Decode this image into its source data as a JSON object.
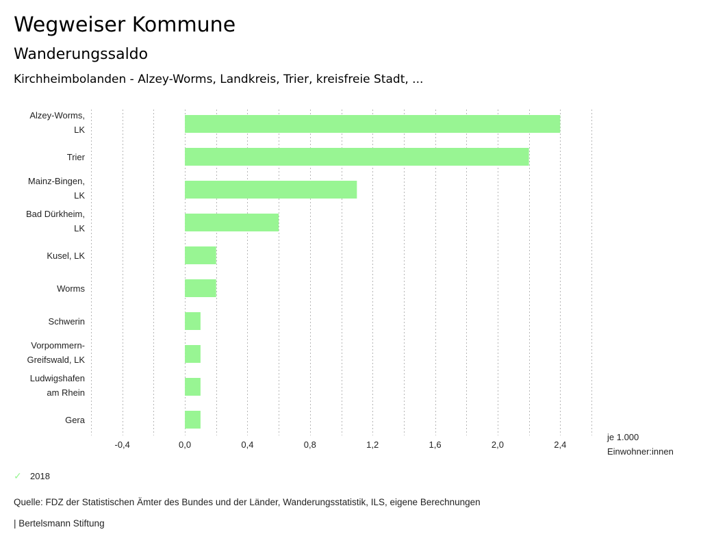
{
  "header": {
    "title": "Wegweiser Kommune",
    "subtitle": "Wanderungssaldo",
    "selection": "Kirchheimbolanden - Alzey-Worms, Landkreis, Trier, kreisfreie Stadt, ..."
  },
  "chart_data": {
    "type": "bar",
    "orientation": "horizontal",
    "title": "Wanderungssaldo",
    "categories": [
      [
        "Alzey-Worms,",
        "LK"
      ],
      [
        "Trier"
      ],
      [
        "Mainz-Bingen,",
        "LK"
      ],
      [
        "Bad Dürkheim,",
        "LK"
      ],
      [
        "Kusel, LK"
      ],
      [
        "Worms"
      ],
      [
        "Schwerin"
      ],
      [
        "Vorpommern-",
        "Greifswald, LK"
      ],
      [
        "Ludwigshafen",
        "am Rhein"
      ],
      [
        "Gera"
      ]
    ],
    "series": [
      {
        "name": "2018",
        "color": "#98f593",
        "values": [
          2.4,
          2.2,
          1.1,
          0.6,
          0.2,
          0.2,
          0.1,
          0.1,
          0.1,
          0.1
        ]
      }
    ],
    "xlim": [
      -0.6,
      2.6
    ],
    "gridlines_at": [
      -0.6,
      -0.4,
      -0.2,
      0.0,
      0.2,
      0.4,
      0.6,
      0.8,
      1.0,
      1.2,
      1.4,
      1.6,
      1.8,
      2.0,
      2.2,
      2.4,
      2.6
    ],
    "ticks": [
      {
        "value": -0.4,
        "label": "-0,4"
      },
      {
        "value": 0.0,
        "label": "0,0"
      },
      {
        "value": 0.4,
        "label": "0,4"
      },
      {
        "value": 0.8,
        "label": "0,8"
      },
      {
        "value": 1.2,
        "label": "1,2"
      },
      {
        "value": 1.6,
        "label": "1,6"
      },
      {
        "value": 2.0,
        "label": "2,0"
      },
      {
        "value": 2.4,
        "label": "2,4"
      }
    ],
    "xlabel": [
      "je 1.000",
      "Einwohner:innen"
    ],
    "grid": true,
    "legend_position": "bottom-left"
  },
  "legend": {
    "icon": "check-icon",
    "label": "2018"
  },
  "footer": {
    "source": "Quelle: FDZ der Statistischen Ämter des Bundes und der Länder, Wanderungsstatistik, ILS, eigene Berechnungen",
    "brand": "| Bertelsmann Stiftung"
  }
}
